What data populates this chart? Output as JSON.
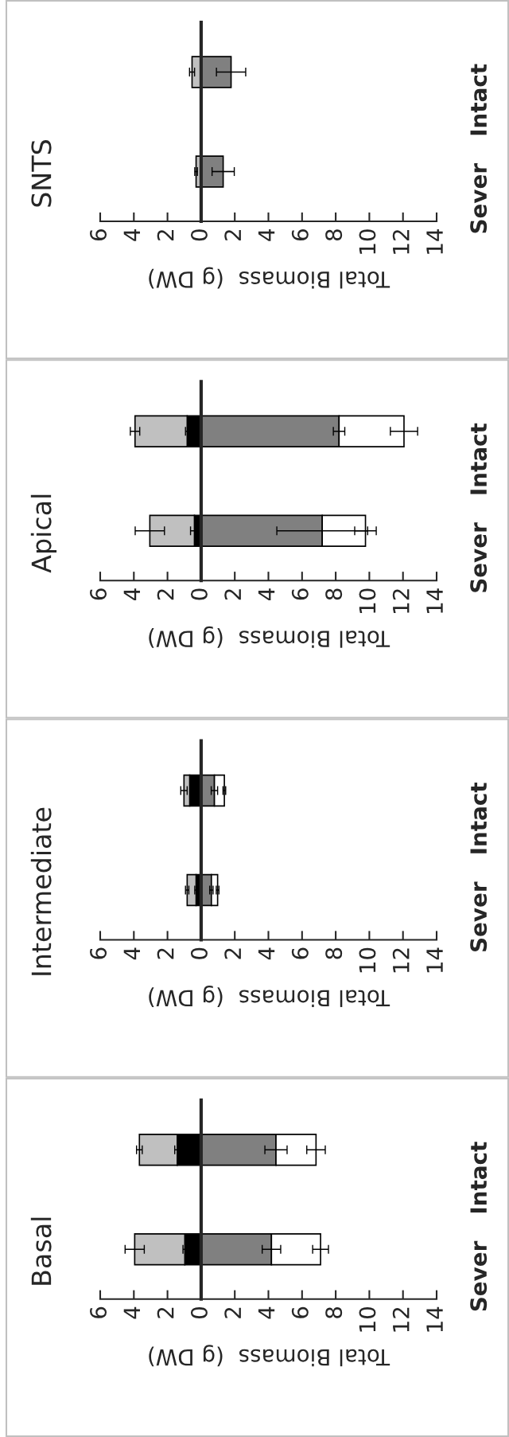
{
  "chart_data": [
    {
      "type": "bar",
      "title": "SNTS",
      "orientation": "horizontal",
      "stacked": true,
      "categories": [
        "Intact",
        "Sever"
      ],
      "xlabel": "Total Biomass  (g DW)",
      "xlim": [
        -6,
        14
      ],
      "xticks": [
        {
          "value": -6,
          "label": "6"
        },
        {
          "value": -4,
          "label": "4"
        },
        {
          "value": -2,
          "label": "2"
        },
        0,
        2,
        4,
        6,
        8,
        10,
        12,
        14
      ],
      "series": [
        {
          "color": "#c0c0c0",
          "values": [
            -0.54,
            -0.3
          ],
          "errors": [
            0.15,
            0.08
          ]
        },
        {
          "color": "#808080",
          "values": [
            1.78,
            1.31
          ],
          "errors": [
            0.87,
            0.66
          ]
        }
      ]
    },
    {
      "type": "bar",
      "title": "Apical",
      "orientation": "horizontal",
      "stacked": true,
      "categories": [
        "Intact",
        "Sever"
      ],
      "xlabel": "Total Biomass  (g DW)",
      "xlim": [
        -6,
        14
      ],
      "xticks": [
        {
          "value": -6,
          "label": "6"
        },
        {
          "value": -4,
          "label": "4"
        },
        {
          "value": -2,
          "label": "2"
        },
        0,
        2,
        4,
        6,
        8,
        10,
        12,
        14
      ],
      "series": [
        {
          "color": "#000000",
          "values": [
            -0.83,
            -0.4
          ],
          "errors": [
            0.1,
            0.23
          ]
        },
        {
          "color": "#c0c0c0",
          "values": [
            -3.1,
            -2.65
          ],
          "errors": [
            0.28,
            0.87
          ]
        },
        {
          "color": "#808080",
          "values": [
            8.2,
            7.2
          ],
          "errors": [
            0.34,
            2.7
          ]
        },
        {
          "color": "#ffffff",
          "values": [
            3.86,
            2.57
          ],
          "errors": [
            0.81,
            0.64
          ]
        }
      ]
    },
    {
      "type": "bar",
      "title": "Intermediate",
      "orientation": "horizontal",
      "stacked": true,
      "categories": [
        "Intact",
        "Sever"
      ],
      "xlabel": "Total Biomass  (g DW)",
      "xlim": [
        -6,
        14
      ],
      "xticks": [
        {
          "value": -6,
          "label": "6"
        },
        {
          "value": -4,
          "label": "4"
        },
        {
          "value": -2,
          "label": "2"
        },
        0,
        2,
        4,
        6,
        8,
        10,
        12,
        14
      ],
      "series": [
        {
          "color": "#000000",
          "values": [
            -0.68,
            -0.3
          ],
          "errors": [
            null,
            0.08
          ]
        },
        {
          "color": "#c0c0c0",
          "values": [
            -0.34,
            -0.53
          ],
          "errors": [
            0.19,
            0.1
          ]
        },
        {
          "color": "#808080",
          "values": [
            0.79,
            0.61
          ],
          "errors": [
            0.19,
            0.1
          ]
        },
        {
          "color": "#ffffff",
          "values": [
            0.59,
            0.37
          ],
          "errors": [
            0.08,
            0.08
          ]
        }
      ]
    },
    {
      "type": "bar",
      "title": "Basal",
      "orientation": "horizontal",
      "stacked": true,
      "categories": [
        "Intact",
        "Sever"
      ],
      "xlabel": "Total Biomass  (g DW)",
      "xlim": [
        -6,
        14
      ],
      "xticks": [
        {
          "value": -6,
          "label": "6"
        },
        {
          "value": -4,
          "label": "4"
        },
        {
          "value": -2,
          "label": "2"
        },
        0,
        2,
        4,
        6,
        8,
        10,
        12,
        14
      ],
      "series": [
        {
          "color": "#000000",
          "values": [
            -1.42,
            -0.97
          ],
          "errors": [
            0.15,
            0.11
          ]
        },
        {
          "color": "#c0c0c0",
          "values": [
            -2.25,
            -2.98
          ],
          "errors": [
            0.17,
            0.57
          ]
        },
        {
          "color": "#808080",
          "values": [
            4.45,
            4.18
          ],
          "errors": [
            0.66,
            0.55
          ]
        },
        {
          "color": "#ffffff",
          "values": [
            2.38,
            2.92
          ],
          "errors": [
            0.55,
            0.47
          ]
        }
      ]
    }
  ]
}
